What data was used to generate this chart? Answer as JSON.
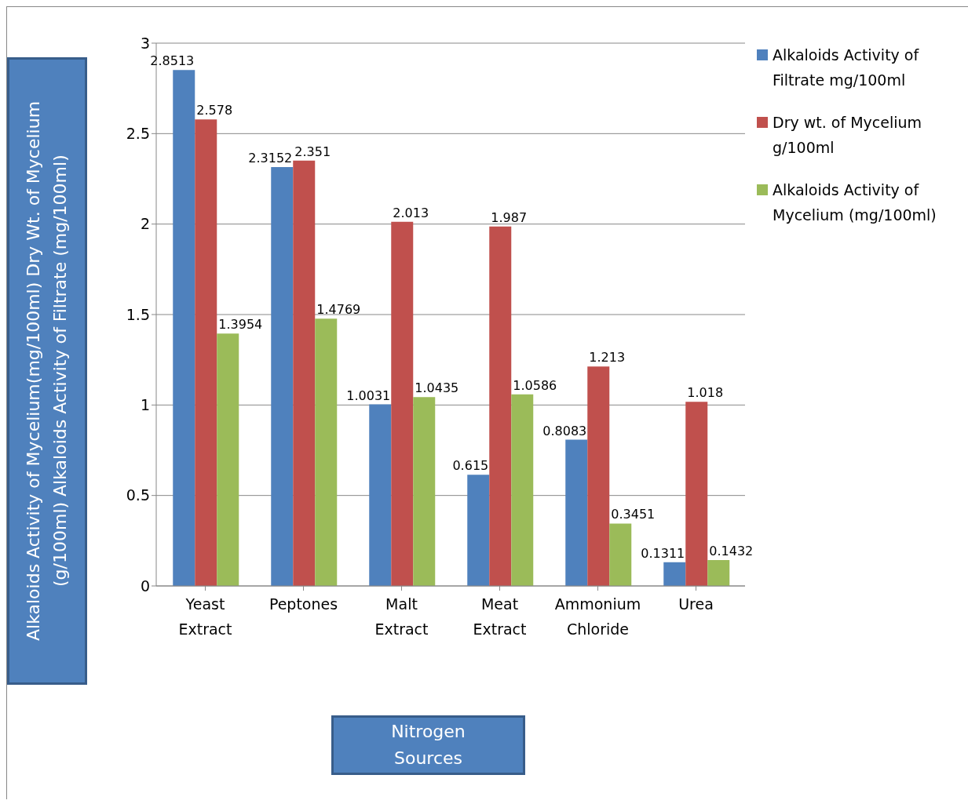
{
  "chart_data": {
    "type": "bar",
    "xlabel": "Nitrogen Sources",
    "ylabel": "Alkaloids Activity of Mycelium(mg/100ml) Dry Wt. of Mycelium (g/100ml) Alkaloids Activity of Filtrate (mg/100ml)",
    "categories": [
      "Yeast Extract",
      "Peptones",
      "Malt Extract",
      "Meat Extract",
      "Ammonium Chloride",
      "Urea"
    ],
    "series": [
      {
        "name": "Alkaloids Activity of Filtrate mg/100ml",
        "color": "#4f81bd",
        "values": [
          2.8513,
          2.3152,
          1.0031,
          0.615,
          0.8083,
          0.1311
        ]
      },
      {
        "name": "Dry wt. of Mycelium g/100ml",
        "color": "#c0504d",
        "values": [
          2.578,
          2.351,
          2.013,
          1.987,
          1.213,
          1.018
        ]
      },
      {
        "name": "Alkaloids Activity of Mycelium (mg/100ml)",
        "color": "#9bbb59",
        "values": [
          1.3954,
          1.4769,
          1.0435,
          1.0586,
          0.3451,
          0.1432
        ]
      }
    ],
    "ylim": [
      0,
      3
    ],
    "yticks": [
      0,
      0.5,
      1,
      1.5,
      2,
      2.5,
      3
    ],
    "grid": "y",
    "legend": "top right",
    "data_labels": true
  }
}
